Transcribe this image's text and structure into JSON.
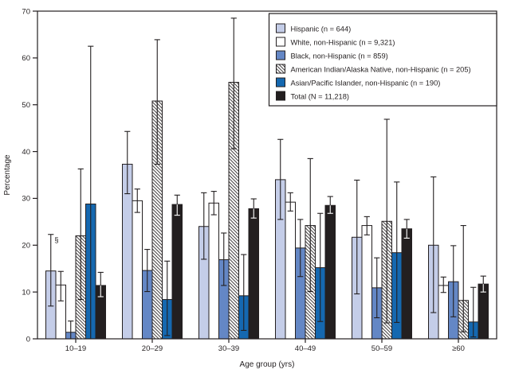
{
  "figure": {
    "background": "#ffffff",
    "axis_color": "#231f20"
  },
  "chart_data": {
    "type": "bar",
    "title": "",
    "xlabel": "Age group (yrs)",
    "ylabel": "Percentage",
    "ylim": [
      0,
      70
    ],
    "yticks": [
      0,
      10,
      20,
      30,
      40,
      50,
      60,
      70
    ],
    "categories": [
      "10–19",
      "20–29",
      "30–39",
      "40–49",
      "50–59",
      "≥60"
    ],
    "grid": false,
    "legend_position": "top-right-inside",
    "error_bars": true,
    "series": [
      {
        "key": "hispanic",
        "label": "Hispanic (n = 644)",
        "color": "#c4cde8",
        "hatch": false,
        "values": [
          14.5,
          37.3,
          24.0,
          34.0,
          21.7,
          20.0
        ],
        "err_low": [
          7.0,
          31.0,
          17.0,
          25.5,
          9.6,
          5.6
        ],
        "err_high": [
          22.3,
          44.3,
          31.2,
          42.6,
          33.9,
          34.6
        ]
      },
      {
        "key": "white",
        "label": "White, non-Hispanic (n = 9,321)",
        "color": "#ffffff",
        "hatch": false,
        "values": [
          11.5,
          29.5,
          29.0,
          29.2,
          24.2,
          11.4
        ],
        "err_low": [
          8.1,
          27.0,
          26.5,
          27.3,
          22.2,
          9.9
        ],
        "err_high": [
          14.4,
          32.0,
          31.5,
          31.2,
          26.1,
          13.2
        ]
      },
      {
        "key": "black",
        "label": "Black, non-Hispanic (n = 859)",
        "color": "#6487c5",
        "hatch": false,
        "values": [
          1.4,
          14.6,
          16.9,
          19.4,
          10.9,
          12.2
        ],
        "err_low": [
          0.0,
          10.1,
          11.4,
          13.3,
          4.5,
          4.7
        ],
        "err_high": [
          3.8,
          19.1,
          22.6,
          25.5,
          17.3,
          19.9
        ]
      },
      {
        "key": "aian",
        "label": "American Indian/Alaska Native, non-Hispanic (n = 205)",
        "color": "#ffffff",
        "hatch": true,
        "values": [
          22.0,
          50.8,
          54.8,
          24.2,
          25.1,
          8.2
        ],
        "err_low": [
          8.4,
          37.3,
          40.6,
          10.1,
          3.4,
          1.5
        ],
        "err_high": [
          36.3,
          63.9,
          68.5,
          38.5,
          46.9,
          24.2
        ]
      },
      {
        "key": "api",
        "label": "Asian/Pacific Islander, non-Hispanic (n = 190)",
        "color": "#1568b0",
        "hatch": false,
        "values": [
          28.8,
          8.4,
          9.2,
          15.2,
          18.4,
          3.6
        ],
        "err_low": [
          0.0,
          0.7,
          1.8,
          3.7,
          3.5,
          0.4
        ],
        "err_high": [
          62.5,
          16.6,
          18.0,
          26.8,
          33.5,
          11.0
        ]
      },
      {
        "key": "total",
        "label": "Total (N = 11,218)",
        "color": "#231f20",
        "hatch": false,
        "values": [
          11.4,
          28.7,
          27.8,
          28.5,
          23.5,
          11.7
        ],
        "err_low": [
          9.0,
          26.4,
          25.8,
          26.8,
          21.5,
          10.0
        ],
        "err_high": [
          14.2,
          30.7,
          29.9,
          30.4,
          25.5,
          13.4
        ]
      }
    ],
    "annotations": [
      {
        "text": "§",
        "series": 0,
        "category": 0
      }
    ]
  }
}
